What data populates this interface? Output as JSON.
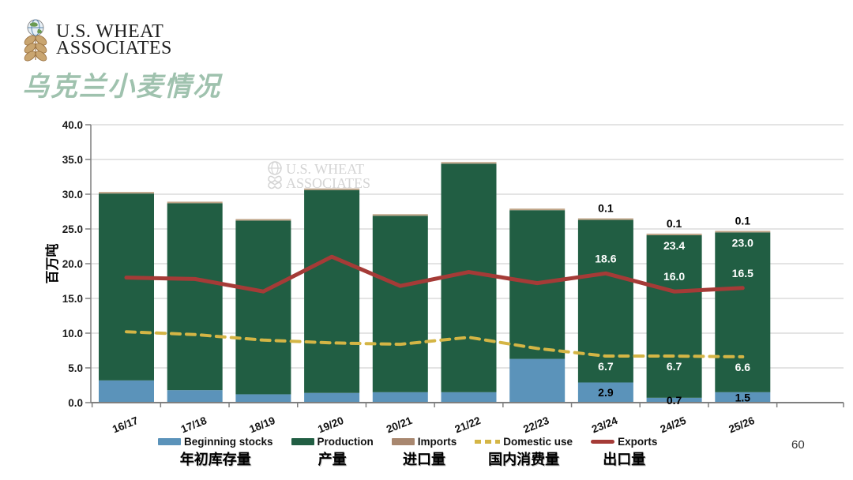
{
  "header": {
    "logo_line1": "U.S. WHEAT",
    "logo_line2": "ASSOCIATES",
    "title": "乌克兰小麦情况"
  },
  "watermark": {
    "line1": "U.S. WHEAT",
    "line2": "ASSOCIATES"
  },
  "footer": {
    "page_number": "60"
  },
  "colors": {
    "title": "#9fc2ae",
    "watermark": "#d4d4d4",
    "gridline": "#c8c8c8",
    "axis": "#7f7f7f",
    "tick_text": "#1a1a1a",
    "imports_cap": "#bfa488"
  },
  "chart_data": {
    "type": "bar",
    "subtype": "stacked bars with two overlay lines",
    "title": "乌克兰小麦情况 (Ukraine wheat situation)",
    "ylabel": "百万吨",
    "ylim": [
      0,
      40
    ],
    "ytick_step": 5,
    "grid": true,
    "legend_position": "bottom",
    "categories": [
      "16/17",
      "17/18",
      "18/19",
      "19/20",
      "20/21",
      "21/22",
      "22/23",
      "23/24",
      "24/25",
      "25/26"
    ],
    "series": [
      {
        "name": "Beginning stocks",
        "name_zh": "年初库存量",
        "render": "bar",
        "color": "#5b93ba",
        "values": [
          3.2,
          1.8,
          1.2,
          1.4,
          1.5,
          1.5,
          6.3,
          2.9,
          0.7,
          1.5
        ]
      },
      {
        "name": "Production",
        "name_zh": "产量",
        "render": "bar",
        "color": "#215e43",
        "values": [
          26.9,
          26.9,
          25.0,
          29.2,
          25.4,
          32.9,
          21.4,
          23.4,
          23.4,
          23.0
        ]
      },
      {
        "name": "Imports",
        "name_zh": "进口量",
        "render": "bar",
        "color": "#a8876f",
        "values": [
          0.1,
          0.1,
          0.1,
          0.1,
          0.1,
          0.1,
          0.1,
          0.1,
          0.1,
          0.1
        ]
      },
      {
        "name": "Domestic use",
        "name_zh": "国内消费量",
        "render": "line-dashed",
        "color": "#d4b545",
        "values": [
          10.2,
          9.8,
          9.0,
          8.6,
          8.4,
          9.4,
          7.8,
          6.7,
          6.7,
          6.6
        ]
      },
      {
        "name": "Exports",
        "name_zh": "出口量",
        "render": "line",
        "color": "#a53b37",
        "values": [
          18.0,
          17.8,
          16.0,
          21.0,
          16.8,
          18.8,
          17.2,
          18.6,
          16.0,
          16.5
        ]
      }
    ],
    "bar_labels": [
      {
        "index": 7,
        "imports": "0.1",
        "exports": "18.6",
        "domestic_use": "6.7",
        "beginning_stocks": "2.9"
      },
      {
        "index": 8,
        "imports": "0.1",
        "production": "23.4",
        "exports": "16.0",
        "domestic_use": "6.7",
        "beginning_stocks": "0.7"
      },
      {
        "index": 9,
        "imports": "0.1",
        "production": "23.0",
        "exports": "16.5",
        "domestic_use": "6.6",
        "beginning_stocks": "1.5"
      }
    ]
  }
}
